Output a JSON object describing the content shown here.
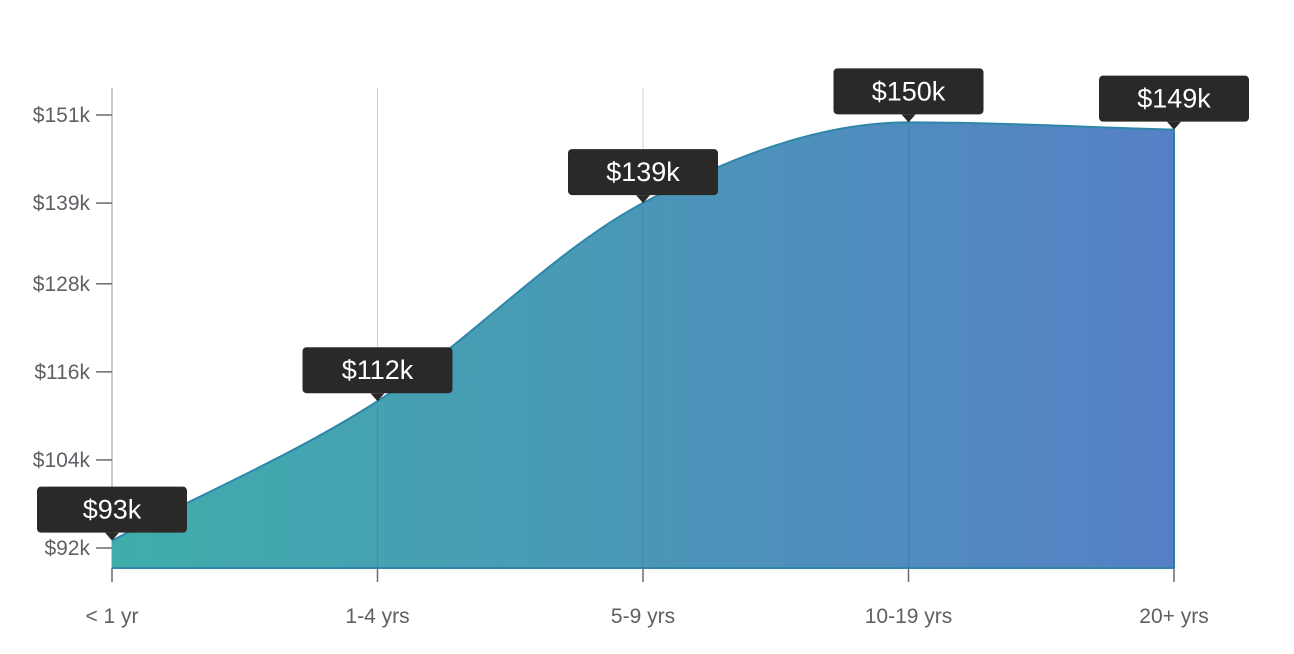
{
  "chart_data": {
    "type": "area",
    "categories": [
      "< 1 yr",
      "1-4 yrs",
      "5-9 yrs",
      "10-19 yrs",
      "20+ yrs"
    ],
    "values": [
      93,
      112,
      139,
      150,
      149
    ],
    "data_labels": [
      "$93k",
      "$112k",
      "$139k",
      "$150k",
      "$149k"
    ],
    "y_ticks": [
      92,
      104,
      116,
      128,
      139,
      151
    ],
    "y_tick_labels": [
      "$92k",
      "$104k",
      "$116k",
      "$128k",
      "$139k",
      "$151k"
    ],
    "ylim": [
      92,
      151
    ],
    "grid": "vertical",
    "title": "",
    "xlabel": "",
    "ylabel": ""
  },
  "colors": {
    "gradient_start": "#3fadaa",
    "gradient_end": "#5680c6",
    "line": "#2e86a8",
    "tooltip_bg": "#2b2828",
    "grid": "#cfcfcf",
    "axis": "#6b6b6b"
  }
}
